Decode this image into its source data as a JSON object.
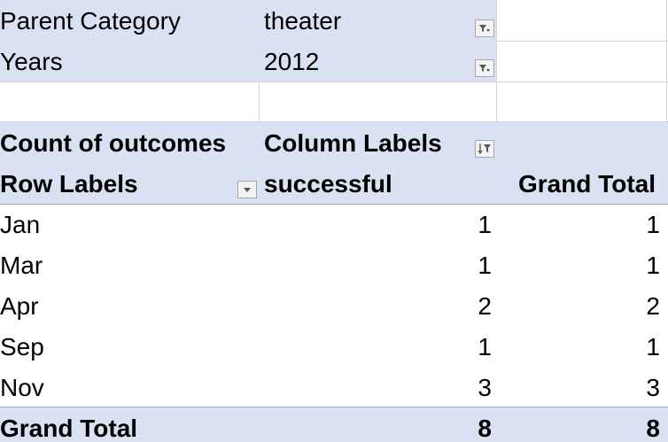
{
  "filters": [
    {
      "label": "Parent Category",
      "value": "theater",
      "icon": "filter-dropdown-icon"
    },
    {
      "label": "Years",
      "value": "2012",
      "icon": "filter-dropdown-icon"
    }
  ],
  "pivot": {
    "value_field": "Count of outcomes",
    "column_labels": "Column Labels",
    "column_labels_icon": "sort-filter-icon",
    "row_labels": "Row Labels",
    "row_labels_icon": "dropdown-icon",
    "column_header": "successful",
    "grand_total_header": "Grand Total",
    "rows": [
      {
        "label": "Jan",
        "successful": "1",
        "total": "1"
      },
      {
        "label": "Mar",
        "successful": "1",
        "total": "1"
      },
      {
        "label": "Apr",
        "successful": "2",
        "total": "2"
      },
      {
        "label": "Sep",
        "successful": "1",
        "total": "1"
      },
      {
        "label": "Nov",
        "successful": "3",
        "total": "3"
      }
    ],
    "grand_total": {
      "label": "Grand Total",
      "successful": "8",
      "total": "8"
    }
  },
  "colors": {
    "header_band": "#d9e1f2",
    "gridline": "#d4d4d4"
  }
}
